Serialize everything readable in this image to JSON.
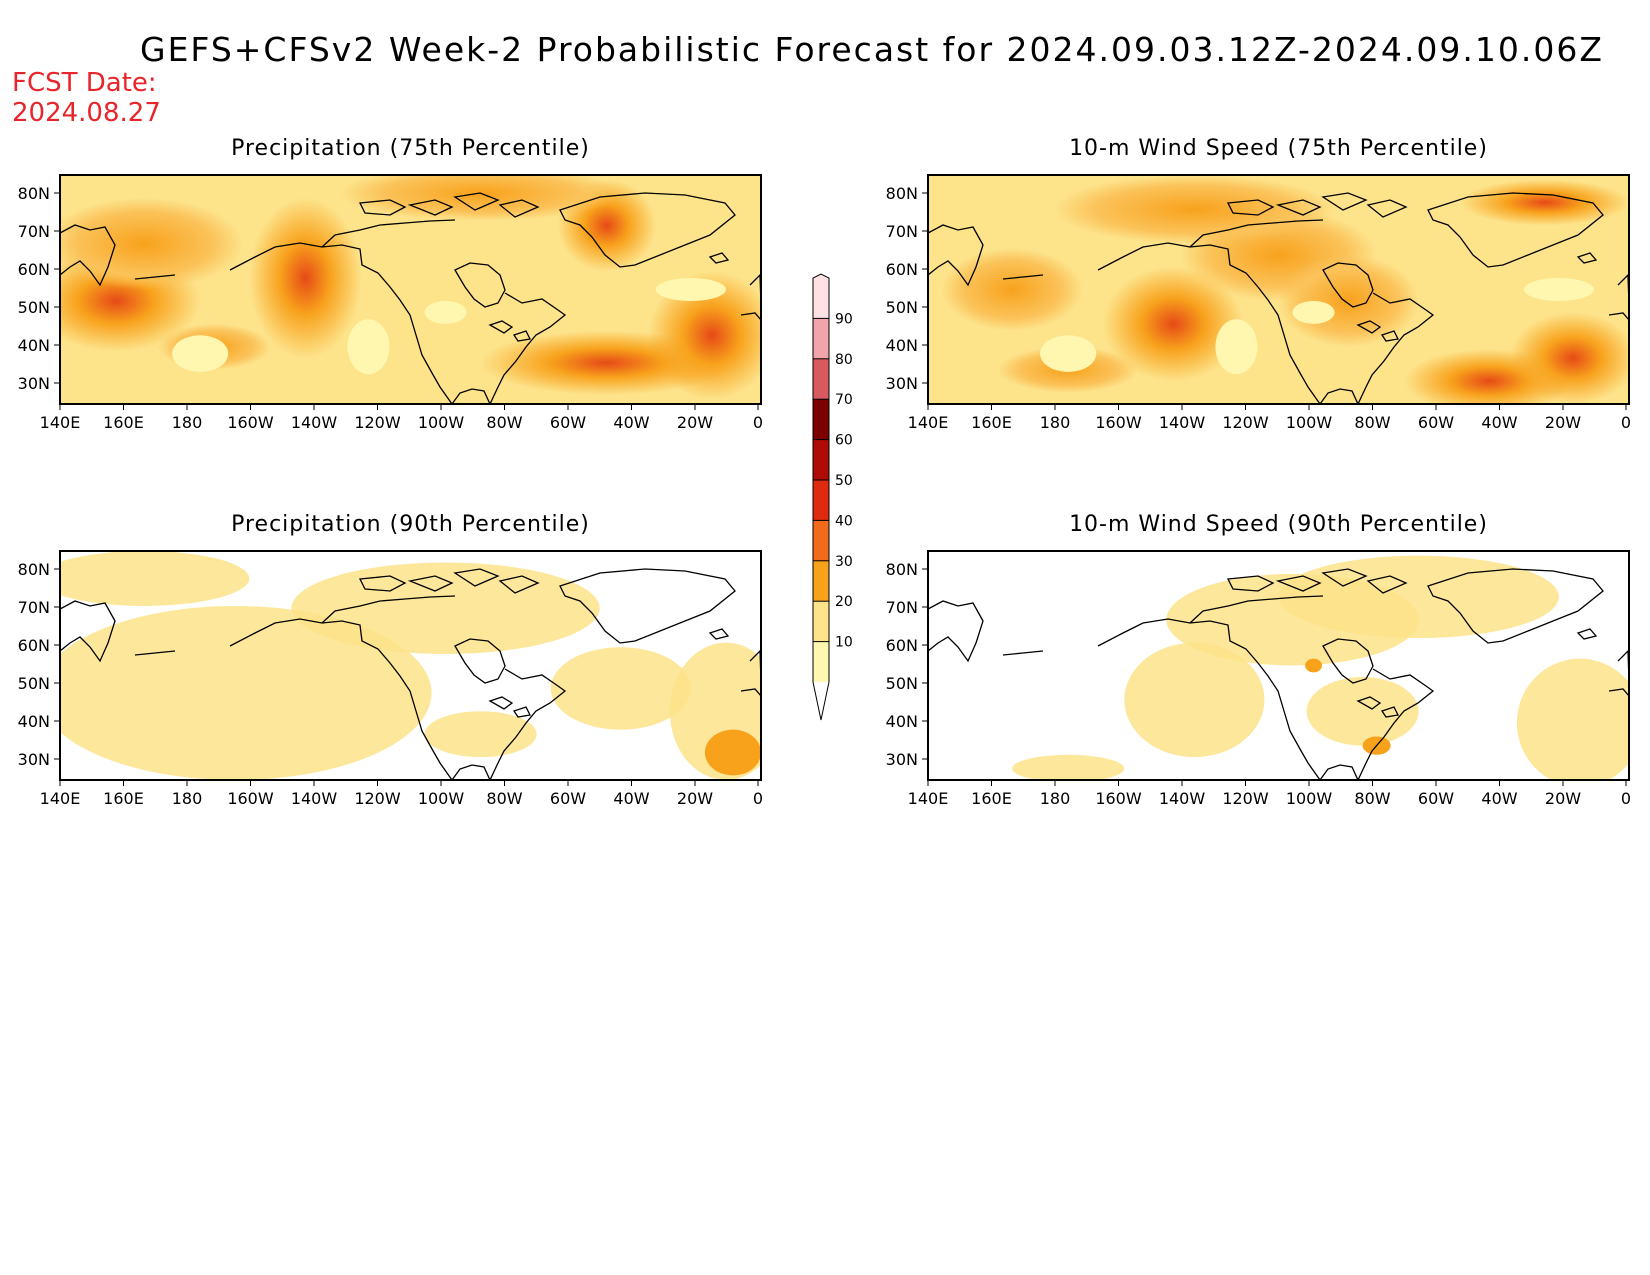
{
  "header": {
    "title": "GEFS+CFSv2 Week-2 Probabilistic Forecast for 2024.09.03.12Z-2024.09.10.06Z",
    "fcst_date_label": "FCST Date:",
    "fcst_date_value": "2024.08.27"
  },
  "axes": {
    "lat_labels": [
      "80N",
      "70N",
      "60N",
      "50N",
      "40N",
      "30N"
    ],
    "lon_labels": [
      "140E",
      "160E",
      "180",
      "160W",
      "140W",
      "120W",
      "100W",
      "80W",
      "60W",
      "40W",
      "20W",
      "0"
    ]
  },
  "panels": [
    {
      "id": "precip-75",
      "title": "Precipitation (75th Percentile)",
      "shading": "high"
    },
    {
      "id": "wind-75",
      "title": "10-m Wind Speed (75th Percentile)",
      "shading": "high"
    },
    {
      "id": "precip-90",
      "title": "Precipitation (90th Percentile)",
      "shading": "low"
    },
    {
      "id": "wind-90",
      "title": "10-m Wind Speed (90th Percentile)",
      "shading": "low"
    }
  ],
  "colorbar": {
    "levels": [
      "10",
      "20",
      "30",
      "40",
      "50",
      "60",
      "70",
      "80",
      "90"
    ],
    "colors": [
      "#fff7b0",
      "#fde38a",
      "#f8a21c",
      "#f26b1d",
      "#e02a10",
      "#b00c06",
      "#7c0000",
      "#d85a5e",
      "#f1a4aa",
      "#fde1e5"
    ]
  }
}
